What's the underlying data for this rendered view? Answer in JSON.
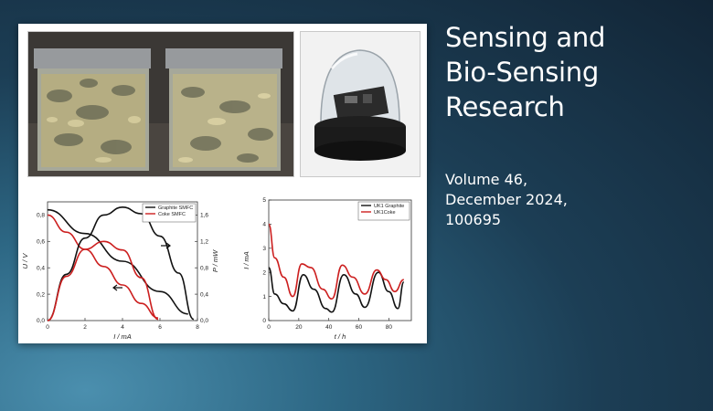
{
  "journal": {
    "title_lines": [
      "Sensing and",
      "Bio-Sensing",
      "Research"
    ]
  },
  "issue": {
    "volume": "Volume 46,",
    "date": "December 2024,",
    "article": "100695"
  },
  "chart_data": [
    {
      "type": "line",
      "xlabel": "I / mA",
      "ylabel": "U / V",
      "ylabel_right": "P / mW",
      "xlim": [
        0,
        8
      ],
      "ylim": [
        0,
        0.9
      ],
      "ylim_right": [
        0,
        1.8
      ],
      "xticks": [
        "0",
        "2",
        "4",
        "6",
        "8"
      ],
      "yticks": [
        "0,0",
        "0,2",
        "0,4",
        "0,6",
        "0,8"
      ],
      "yticks_right": [
        "0,0",
        "0,4",
        "0,8",
        "1,2",
        "1,6"
      ],
      "legend": "top-right",
      "series": [
        {
          "name": "Graphite SMFC",
          "color": "#111111",
          "axis": "left",
          "x": [
            0,
            2,
            4,
            6,
            7.5
          ],
          "y": [
            0.84,
            0.66,
            0.45,
            0.22,
            0.05
          ]
        },
        {
          "name": "Coke SMFC",
          "color": "#cc1f1f",
          "axis": "left",
          "x": [
            0,
            1,
            2,
            3,
            4,
            5,
            5.9
          ],
          "y": [
            0.8,
            0.67,
            0.54,
            0.41,
            0.27,
            0.13,
            0.02
          ]
        },
        {
          "name": "",
          "color": "#111111",
          "axis": "right",
          "x": [
            0,
            1,
            2,
            3,
            4,
            5,
            6,
            7,
            7.8
          ],
          "y": [
            0,
            0.7,
            1.25,
            1.6,
            1.72,
            1.62,
            1.28,
            0.72,
            0.02
          ]
        },
        {
          "name": "",
          "color": "#cc1f1f",
          "axis": "right",
          "x": [
            0,
            1,
            2,
            3,
            4,
            5,
            5.9
          ],
          "y": [
            0,
            0.67,
            1.08,
            1.2,
            1.07,
            0.65,
            0.02
          ]
        }
      ]
    },
    {
      "type": "line",
      "xlabel": "t / h",
      "ylabel": "I / mA",
      "xlim": [
        0,
        95
      ],
      "ylim": [
        0,
        5
      ],
      "xticks": [
        "0",
        "20",
        "40",
        "60",
        "80"
      ],
      "yticks": [
        "0",
        "1",
        "2",
        "3",
        "4",
        "5"
      ],
      "legend": "top-right",
      "series": [
        {
          "name": "UK1 Graphite",
          "color": "#111111",
          "x": [
            0,
            4,
            10,
            16,
            23,
            30,
            38,
            42,
            50,
            58,
            64,
            73,
            80,
            86,
            90
          ],
          "y": [
            2.2,
            1.1,
            0.7,
            0.4,
            1.9,
            1.3,
            0.5,
            0.35,
            1.9,
            1.1,
            0.55,
            2.0,
            1.2,
            0.5,
            1.6
          ]
        },
        {
          "name": "UK1Coke",
          "color": "#cc1f1f",
          "x": [
            0,
            4,
            10,
            16,
            22,
            28,
            36,
            42,
            49,
            56,
            64,
            72,
            78,
            84,
            90
          ],
          "y": [
            4.0,
            2.6,
            1.8,
            1.0,
            2.35,
            2.2,
            1.3,
            0.9,
            2.3,
            1.8,
            1.1,
            2.1,
            1.7,
            1.2,
            1.7
          ]
        }
      ]
    }
  ]
}
